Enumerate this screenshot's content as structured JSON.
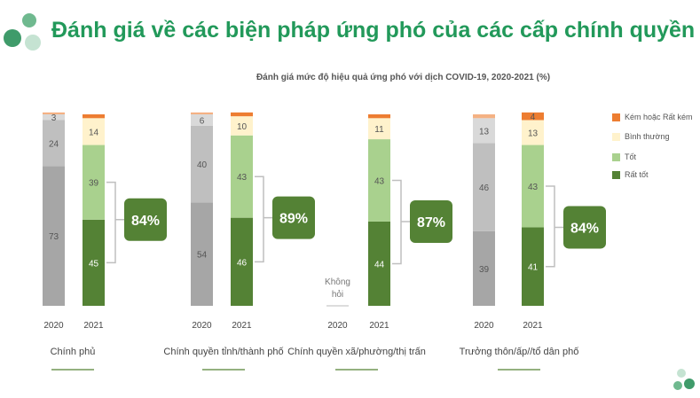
{
  "header": {
    "title": "Đánh giá về các biện pháp ứng phó của các cấp chính quyền"
  },
  "chart_data": {
    "type": "bar",
    "stacked": true,
    "title": "Đánh giá mức độ hiệu quả ứng phó với dịch COVID-19, 2020-2021 (%)",
    "legend_position": "right",
    "series_names": [
      "Rất tốt",
      "Tốt",
      "Bình thường",
      "Kém hoặc Rất kém"
    ],
    "legend": [
      {
        "name": "Kém hoặc Rất kém",
        "color": "#ed7d31"
      },
      {
        "name": "Bình thường",
        "color": "#fff2cc"
      },
      {
        "name": "Tốt",
        "color": "#a9d18e"
      },
      {
        "name": "Rất tốt",
        "color": "#548235"
      }
    ],
    "colors_2020": [
      "#a6a6a6",
      "#bfbfbf",
      "#d9d9d9",
      "#f4b183"
    ],
    "colors_2021": [
      "#548235",
      "#a9d18e",
      "#fff2cc",
      "#ed7d31"
    ],
    "groups": [
      {
        "name": "Chính phủ",
        "total": "84%",
        "years": [
          {
            "year": "2020",
            "values": [
              73,
              24,
              3,
              1
            ]
          },
          {
            "year": "2021",
            "values": [
              45,
              39,
              14,
              2
            ]
          }
        ]
      },
      {
        "name": "Chính quyền tỉnh/thành phố",
        "total": "89%",
        "years": [
          {
            "year": "2020",
            "values": [
              54,
              40,
              6,
              1
            ]
          },
          {
            "year": "2021",
            "values": [
              46,
              43,
              10,
              2
            ]
          }
        ]
      },
      {
        "name": "Chính quyền xã/phường/thị trấn",
        "total": "87%",
        "years": [
          {
            "year": "2020",
            "values": null,
            "note": "Không hỏi"
          },
          {
            "year": "2021",
            "values": [
              44,
              43,
              11,
              2
            ]
          }
        ]
      },
      {
        "name": "Trưởng thôn/ấp//tổ dân phố",
        "total": "84%",
        "years": [
          {
            "year": "2020",
            "values": [
              39,
              46,
              13,
              2
            ]
          },
          {
            "year": "2021",
            "values": [
              41,
              43,
              13,
              4
            ]
          }
        ]
      }
    ],
    "ylim": [
      0,
      100
    ]
  }
}
